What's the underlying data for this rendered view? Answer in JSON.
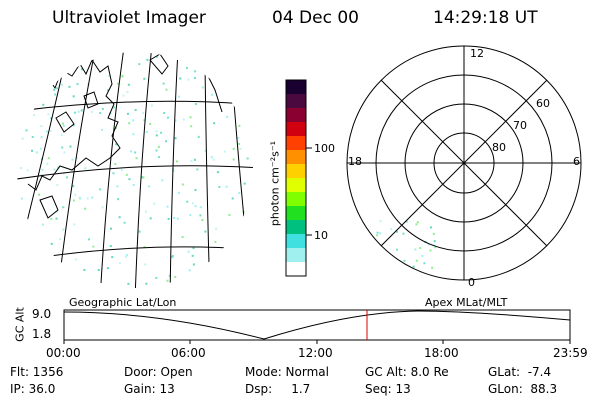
{
  "header": {
    "title": "Ultraviolet Imager",
    "date": "04 Dec 00",
    "time": "14:29:18 UT"
  },
  "colorbar": {
    "unit_label": "photon cm⁻²s⁻¹",
    "ticks": [
      "100",
      "10"
    ],
    "colors": [
      "#1a0030",
      "#4a0a40",
      "#8a0030",
      "#d00010",
      "#ff4000",
      "#ff9000",
      "#ffd000",
      "#e0ff00",
      "#80ff00",
      "#20e020",
      "#00c080",
      "#40e0e0",
      "#a0f0f0",
      "#ffffff"
    ]
  },
  "polar_plot": {
    "mlt_labels": {
      "top": "12",
      "left": "18",
      "right": "6",
      "bottom": "0"
    },
    "lat_labels": [
      "60",
      "70",
      "80"
    ]
  },
  "timeline": {
    "left_label": "Geographic Lat/Lon",
    "right_label": "Apex MLat/MLT",
    "yaxis_title": "GC Alt",
    "y_ticks": [
      "9.0",
      "1.8"
    ],
    "x_ticks": [
      "00:00",
      "06:00",
      "12:00",
      "18:00",
      "23:59"
    ],
    "marker_color": "#e00000"
  },
  "status": {
    "col1": [
      "Flt: 1356",
      "IP: 36.0"
    ],
    "col2": [
      "Door: Open",
      "Gain: 13"
    ],
    "col3": [
      "Mode: Normal",
      "Dsp:     1.7"
    ],
    "col4": [
      "GC Alt: 8.0 Re",
      "Seq: 13"
    ],
    "col5": [
      "GLat:  -7.4",
      "GLon:  88.3"
    ]
  }
}
